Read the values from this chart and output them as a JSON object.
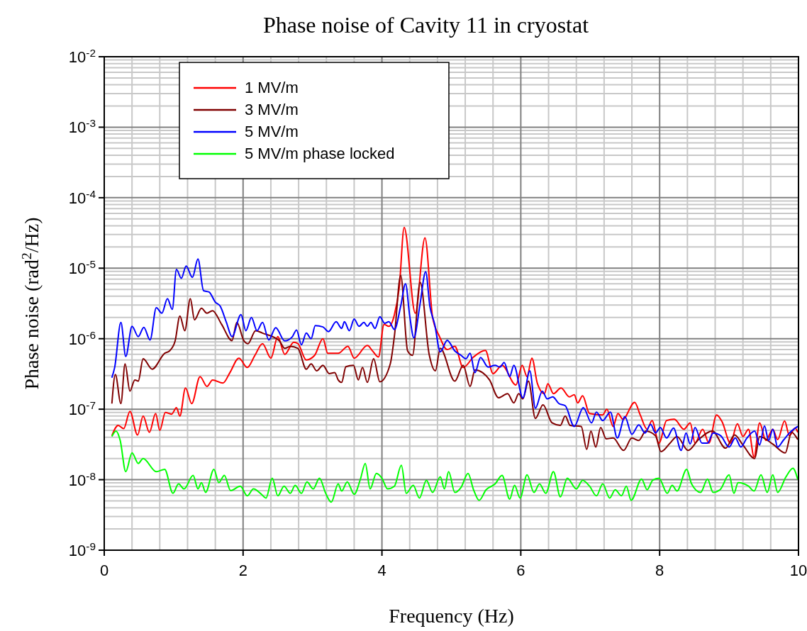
{
  "chart_data": {
    "type": "line",
    "title": "Phase noise of Cavity 11 in cryostat",
    "xlabel": "Frequency (Hz)",
    "ylabel": "Phase noise (rad$^{2}$/Hz)",
    "log": "y",
    "grid": true,
    "legend": "top left",
    "line_style": "solid",
    "marker": "none",
    "xlim": [
      0,
      10
    ],
    "xticks": [
      0,
      2,
      4,
      6,
      8,
      10
    ],
    "ylim": [
      1e-09,
      0.01
    ],
    "yticks": [
      {
        "value": 1e-09,
        "label": "10$^{-9}$"
      },
      {
        "value": 1e-08,
        "label": "10$^{-8}$"
      },
      {
        "value": 1e-07,
        "label": "10$^{-7}$"
      },
      {
        "value": 1e-06,
        "label": "10$^{-6}$"
      },
      {
        "value": 1e-05,
        "label": "10$^{-5}$"
      },
      {
        "value": 0.0001,
        "label": "10$^{-4}$"
      },
      {
        "value": 0.001,
        "label": "10$^{-3}$"
      },
      {
        "value": 0.01,
        "label": "10$^{-2}$"
      }
    ],
    "series": [
      {
        "name": "1 MV/m",
        "color": "#ff0000",
        "x": [
          0.11,
          0.2,
          0.28,
          0.37,
          0.48,
          0.56,
          0.65,
          0.74,
          0.8,
          0.88,
          0.97,
          1.04,
          1.09,
          1.17,
          1.26,
          1.38,
          1.48,
          1.56,
          1.71,
          1.81,
          1.94,
          2.06,
          2.17,
          2.28,
          2.4,
          2.5,
          2.6,
          2.73,
          2.79,
          2.91,
          3.03,
          3.15,
          3.22,
          3.37,
          3.51,
          3.6,
          3.79,
          3.87,
          3.95,
          4.03,
          4.1,
          4.18,
          4.25,
          4.32,
          4.48,
          4.62,
          4.73,
          4.83,
          4.94,
          5.05,
          5.17,
          5.32,
          5.49,
          5.6,
          5.73,
          5.93,
          6.02,
          6.09,
          6.16,
          6.24,
          6.34,
          6.39,
          6.47,
          6.58,
          6.7,
          6.77,
          6.82,
          6.89,
          6.99,
          7.18,
          7.24,
          7.33,
          7.4,
          7.47,
          7.64,
          7.72,
          7.82,
          7.89,
          7.99,
          8.1,
          8.21,
          8.35,
          8.44,
          8.51,
          8.62,
          8.71,
          8.82,
          8.9,
          9.02,
          9.12,
          9.2,
          9.28,
          9.36,
          9.44,
          9.53,
          9.63,
          9.7,
          9.8,
          9.87,
          9.95,
          9.99
        ],
        "values": [
          4.2e-08,
          5.9e-08,
          5.3e-08,
          9.3e-08,
          4.3e-08,
          8e-08,
          4.7e-08,
          8.7e-08,
          5e-08,
          9e-08,
          8.5e-08,
          1.05e-07,
          8e-08,
          2e-07,
          1.2e-07,
          2.9e-07,
          2.1e-07,
          2.6e-07,
          2.35e-07,
          3.3e-07,
          5.3e-07,
          3.9e-07,
          5.8e-07,
          8.5e-07,
          5.3e-07,
          1.07e-06,
          6e-07,
          8.9e-07,
          8.5e-07,
          5e-07,
          5.8e-07,
          1e-06,
          6.2e-07,
          6.2e-07,
          7.8e-07,
          5.3e-07,
          8e-07,
          6.6e-07,
          5.5e-07,
          1.6e-06,
          1.5e-06,
          2.2e-06,
          5.4e-06,
          3.8e-05,
          2.3e-06,
          2.7e-05,
          2e-06,
          1.07e-06,
          7e-07,
          7.8e-07,
          3.9e-07,
          5.5e-07,
          6.8e-07,
          3.2e-07,
          4.2e-07,
          2.2e-07,
          4.2e-07,
          2.9e-07,
          5.3e-07,
          2.3e-07,
          1.66e-07,
          2.3e-07,
          1.66e-07,
          2e-07,
          1.5e-07,
          1.6e-07,
          1.23e-07,
          1.55e-07,
          8.7e-08,
          8.3e-08,
          1e-07,
          5.7e-08,
          8.7e-08,
          7.2e-08,
          1.25e-07,
          8.3e-08,
          5.2e-08,
          6.9e-08,
          3.3e-08,
          6.9e-08,
          7.2e-08,
          5.2e-08,
          6.4e-08,
          3.3e-08,
          5.2e-08,
          3.3e-08,
          8.3e-08,
          6.6e-08,
          3.3e-08,
          6.2e-08,
          4.1e-08,
          5.2e-08,
          2.1e-08,
          6.4e-08,
          3.6e-08,
          5.2e-08,
          3.7e-08,
          6.8e-08,
          4.2e-08,
          5.4e-08,
          4.7e-08
        ]
      },
      {
        "name": "3 MV/m",
        "color": "#800000",
        "x": [
          0.11,
          0.16,
          0.24,
          0.3,
          0.37,
          0.44,
          0.49,
          0.56,
          0.69,
          0.87,
          0.94,
          1.02,
          1.09,
          1.16,
          1.24,
          1.3,
          1.4,
          1.48,
          1.56,
          1.69,
          1.84,
          1.91,
          2.01,
          2.07,
          2.18,
          2.28,
          2.52,
          2.6,
          2.68,
          2.79,
          2.91,
          2.98,
          3.06,
          3.15,
          3.24,
          3.32,
          3.37,
          3.42,
          3.48,
          3.59,
          3.66,
          3.72,
          3.79,
          3.88,
          3.97,
          4.12,
          4.18,
          4.27,
          4.37,
          4.44,
          4.55,
          4.68,
          4.77,
          4.84,
          5.05,
          5.17,
          5.27,
          5.34,
          5.45,
          5.55,
          5.68,
          5.81,
          5.9,
          5.97,
          6.03,
          6.11,
          6.21,
          6.32,
          6.45,
          6.57,
          6.64,
          6.71,
          6.87,
          6.95,
          7.01,
          7.08,
          7.15,
          7.23,
          7.33,
          7.48,
          7.6,
          7.7,
          7.8,
          7.94,
          8.02,
          8.15,
          8.25,
          8.41,
          8.56,
          8.76,
          8.95,
          9.08,
          9.2,
          9.37,
          9.44,
          9.63,
          9.81,
          9.9,
          9.99
        ],
        "values": [
          1.2e-07,
          3.1e-07,
          1.2e-07,
          4.4e-07,
          1.8e-07,
          2.6e-07,
          2.5e-07,
          5.2e-07,
          3.7e-07,
          6.2e-07,
          6.7e-07,
          9.2e-07,
          2.1e-06,
          1.3e-06,
          3.7e-06,
          1.85e-06,
          2.7e-06,
          2.3e-06,
          2.5e-06,
          1.6e-06,
          9.4e-07,
          1.7e-06,
          9.4e-07,
          8.5e-07,
          1.3e-06,
          1.2e-06,
          9.4e-07,
          7.3e-07,
          7.8e-07,
          7.3e-07,
          3.7e-07,
          4.4e-07,
          3.5e-07,
          4.2e-07,
          3.2e-07,
          3.3e-07,
          2.6e-07,
          2.4e-07,
          4e-07,
          4.2e-07,
          2.6e-07,
          3.9e-07,
          2.4e-07,
          5.2e-07,
          2.45e-07,
          4.4e-07,
          1.1e-06,
          7.9e-06,
          6.7e-07,
          5.8e-07,
          6.3e-06,
          6e-07,
          3.5e-07,
          7.3e-07,
          2.5e-07,
          4.2e-07,
          2.1e-07,
          3.6e-07,
          3.3e-07,
          2.6e-07,
          1.45e-07,
          1.66e-07,
          1.23e-07,
          1.66e-07,
          1.4e-07,
          2.5e-07,
          7.4e-08,
          1.15e-07,
          6.4e-08,
          5.9e-08,
          8e-08,
          5.9e-08,
          5.7e-08,
          2.7e-08,
          4.9e-08,
          2.9e-08,
          5.5e-08,
          3.8e-08,
          3.9e-08,
          2.6e-08,
          3.9e-08,
          3.6e-08,
          4.9e-08,
          4.2e-08,
          2.5e-08,
          3.3e-08,
          4.1e-08,
          2.6e-08,
          3.7e-08,
          4.9e-08,
          2.8e-08,
          4.3e-08,
          3.1e-08,
          2e-08,
          4.1e-08,
          3.2e-08,
          2.4e-08,
          4.7e-08,
          3.7e-08
        ]
      },
      {
        "name": "5 MV/m",
        "color": "#0000ff",
        "x": [
          0.11,
          0.15,
          0.24,
          0.31,
          0.4,
          0.49,
          0.57,
          0.66,
          0.75,
          0.83,
          0.91,
          0.98,
          1.04,
          1.11,
          1.18,
          1.27,
          1.35,
          1.43,
          1.51,
          1.6,
          1.67,
          1.76,
          1.84,
          1.97,
          2.04,
          2.12,
          2.2,
          2.28,
          2.37,
          2.47,
          2.6,
          2.71,
          2.77,
          2.84,
          2.91,
          2.98,
          3.04,
          3.15,
          3.23,
          3.34,
          3.42,
          3.46,
          3.53,
          3.6,
          3.67,
          3.74,
          3.79,
          3.84,
          3.9,
          3.97,
          4.04,
          4.1,
          4.18,
          4.27,
          4.34,
          4.4,
          4.46,
          4.55,
          4.63,
          4.69,
          4.76,
          4.84,
          4.94,
          5.05,
          5.14,
          5.21,
          5.27,
          5.34,
          5.42,
          5.53,
          5.63,
          5.7,
          5.76,
          5.84,
          5.9,
          6.03,
          6.13,
          6.21,
          6.31,
          6.38,
          6.46,
          6.55,
          6.64,
          6.77,
          6.9,
          7.02,
          7.09,
          7.18,
          7.29,
          7.39,
          7.5,
          7.6,
          7.7,
          7.79,
          7.87,
          7.94,
          8.01,
          8.1,
          8.2,
          8.31,
          8.38,
          8.44,
          8.51,
          8.61,
          8.69,
          8.77,
          8.88,
          9,
          9.09,
          9.17,
          9.25,
          9.37,
          9.44,
          9.51,
          9.57,
          9.63,
          9.7,
          9.78,
          9.87,
          9.99
        ],
        "values": [
          2.8e-07,
          3.9e-07,
          1.7e-06,
          5.6e-07,
          1.5e-06,
          1.07e-06,
          1.45e-06,
          9.6e-07,
          2.75e-06,
          2.3e-06,
          3.7e-06,
          2.6e-06,
          9.6e-06,
          7.2e-06,
          1.07e-05,
          7.4e-06,
          1.35e-05,
          4.8e-06,
          4.6e-06,
          3.3e-06,
          2.9e-06,
          1.7e-06,
          1.07e-06,
          2.2e-06,
          1.3e-06,
          2e-06,
          1.3e-06,
          1.7e-06,
          9.6e-07,
          1.43e-06,
          9.3e-07,
          1.07e-06,
          1.33e-06,
          8.2e-07,
          1.2e-06,
          1e-06,
          1.53e-06,
          1.47e-06,
          1.26e-06,
          1.74e-06,
          1.4e-06,
          1.74e-06,
          1.3e-06,
          1.9e-06,
          1.5e-06,
          1.7e-06,
          1.5e-06,
          1.7e-06,
          1.4e-06,
          2.05e-06,
          1.65e-06,
          1.74e-06,
          1.35e-06,
          2.9e-06,
          6e-06,
          2.1e-06,
          1.03e-06,
          3.15e-06,
          8.9e-06,
          2.9e-06,
          1.6e-06,
          6.5e-07,
          9.5e-07,
          6.7e-07,
          5.8e-07,
          5.2e-07,
          6.2e-07,
          3.3e-07,
          5.4e-07,
          3.95e-07,
          4.2e-07,
          3.95e-07,
          4.6e-07,
          2.9e-07,
          4.2e-07,
          1.45e-07,
          3.5e-07,
          1.03e-07,
          1.8e-07,
          1.4e-07,
          1.5e-07,
          1.2e-07,
          1.12e-07,
          5.7e-08,
          1.05e-07,
          6.4e-08,
          9.1e-08,
          6.9e-08,
          9.1e-08,
          3.9e-08,
          7.8e-08,
          4.4e-08,
          6e-08,
          4.6e-08,
          6.1e-08,
          4.6e-08,
          5.5e-08,
          3.9e-08,
          5.4e-08,
          2.6e-08,
          4.6e-08,
          3.2e-08,
          5.5e-08,
          3.3e-08,
          3.3e-08,
          4.6e-08,
          4.2e-08,
          2.9e-08,
          3.9e-08,
          2.9e-08,
          3.8e-08,
          4.9e-08,
          3.1e-08,
          5.8e-08,
          3.6e-08,
          5.2e-08,
          2.9e-08,
          3.6e-08,
          4.6e-08,
          5.7e-08
        ]
      },
      {
        "name": "5 MV/m phase locked",
        "color": "#00ff00",
        "x": [
          0.11,
          0.17,
          0.23,
          0.31,
          0.4,
          0.49,
          0.56,
          0.75,
          0.87,
          0.99,
          1.07,
          1.15,
          1.28,
          1.35,
          1.4,
          1.46,
          1.58,
          1.65,
          1.73,
          1.82,
          1.96,
          2.06,
          2.15,
          2.25,
          2.33,
          2.42,
          2.5,
          2.59,
          2.68,
          2.75,
          2.84,
          2.92,
          3.01,
          3.1,
          3.19,
          3.27,
          3.37,
          3.42,
          3.5,
          3.6,
          3.69,
          3.76,
          3.83,
          3.92,
          4,
          4.08,
          4.18,
          4.28,
          4.35,
          4.45,
          4.54,
          4.64,
          4.73,
          4.84,
          4.9,
          4.96,
          5.05,
          5.14,
          5.24,
          5.32,
          5.4,
          5.5,
          5.63,
          5.73,
          5.84,
          5.91,
          5.99,
          6.09,
          6.19,
          6.27,
          6.36,
          6.47,
          6.57,
          6.67,
          6.8,
          6.89,
          6.99,
          7.09,
          7.18,
          7.28,
          7.36,
          7.45,
          7.52,
          7.59,
          7.74,
          7.82,
          7.9,
          7.99,
          8.11,
          8.18,
          8.25,
          8.39,
          8.46,
          8.59,
          8.69,
          8.77,
          8.87,
          9,
          9.07,
          9.13,
          9.28,
          9.36,
          9.46,
          9.55,
          9.63,
          9.7,
          9.82,
          9.92,
          9.99
        ],
        "values": [
          4.1e-08,
          4.9e-08,
          3.6e-08,
          1.3e-08,
          2.4e-08,
          1.7e-08,
          2e-08,
          1.3e-08,
          1.4e-08,
          6.4e-09,
          8.7e-09,
          7.4e-09,
          1.15e-08,
          7.4e-09,
          9.1e-09,
          6.6e-09,
          1.4e-08,
          9.1e-09,
          1.15e-08,
          7e-09,
          8.1e-09,
          5.9e-09,
          7.4e-09,
          6.4e-09,
          5.5e-09,
          1.05e-08,
          5.9e-09,
          8.1e-09,
          6.4e-09,
          8.3e-09,
          6.4e-09,
          9.3e-09,
          7.4e-09,
          1.05e-08,
          6.4e-09,
          4.8e-09,
          8.7e-09,
          6.9e-09,
          9.3e-09,
          6.2e-09,
          1.02e-08,
          1.7e-08,
          7.4e-09,
          1.23e-08,
          1.05e-08,
          7.4e-09,
          8.1e-09,
          1.6e-08,
          6.4e-09,
          8.3e-09,
          5.5e-09,
          9.8e-09,
          6.6e-09,
          1.1e-08,
          7.4e-09,
          1.3e-08,
          6.6e-09,
          7.8e-09,
          1.23e-08,
          7.2e-09,
          5.1e-09,
          7.2e-09,
          8.7e-09,
          1.15e-08,
          5.3e-09,
          8.3e-09,
          5.5e-09,
          1.17e-08,
          6.6e-09,
          8.7e-09,
          6.4e-09,
          1.3e-08,
          5.7e-09,
          1.05e-08,
          7.4e-09,
          9.8e-09,
          8.1e-09,
          5.9e-09,
          8.7e-09,
          5.5e-09,
          7.2e-09,
          5.9e-09,
          8.1e-09,
          5.1e-09,
          1.02e-08,
          7.2e-09,
          9.8e-09,
          1.05e-08,
          6.4e-09,
          8.3e-09,
          6.9e-09,
          1.4e-08,
          8.7e-09,
          6.6e-09,
          1.02e-08,
          6.6e-09,
          7.2e-09,
          1.17e-08,
          6.4e-09,
          9.1e-09,
          8.1e-09,
          6.9e-09,
          1.17e-08,
          6.6e-09,
          1.17e-08,
          6.6e-09,
          1.1e-08,
          1.45e-08,
          1e-08
        ]
      }
    ]
  }
}
